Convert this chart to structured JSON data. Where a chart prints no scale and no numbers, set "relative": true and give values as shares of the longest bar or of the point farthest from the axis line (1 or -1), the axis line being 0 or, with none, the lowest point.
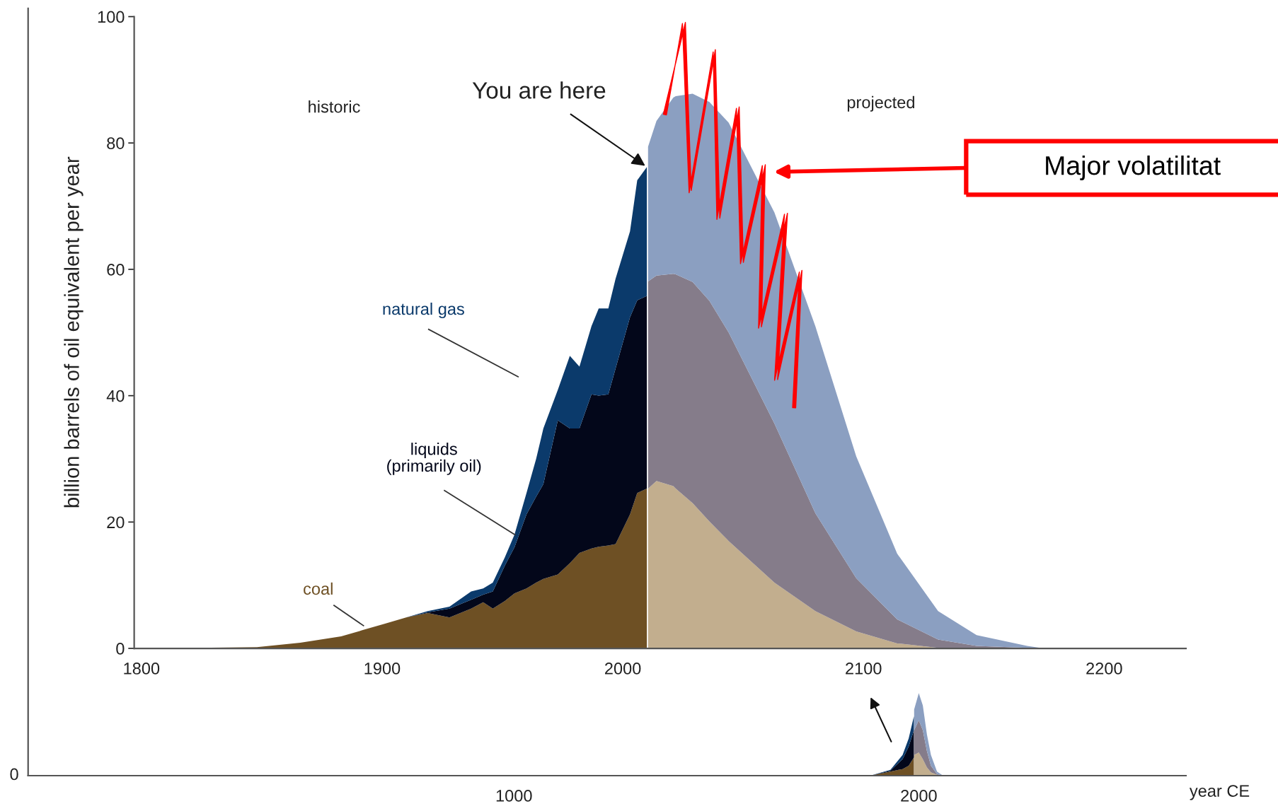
{
  "chart_data": [
    {
      "type": "area",
      "ylabel": "billion barrels of oil equivalent per year",
      "stacked": true,
      "xlim": [
        1797,
        2234
      ],
      "xticks": [
        1800,
        1900,
        2000,
        2100,
        2200
      ],
      "ylim": [
        0,
        100
      ],
      "yticks": [
        0,
        20,
        40,
        60,
        80,
        100
      ],
      "x": [
        1800,
        1848,
        1866,
        1883,
        1892,
        1901,
        1910,
        1919,
        1928,
        1937,
        1942,
        1946,
        1951,
        1955,
        1960,
        1964,
        1967,
        1973,
        1978,
        1982,
        1987,
        1990,
        1994,
        1997,
        2003,
        2006,
        2010,
        2010.5,
        2014,
        2021,
        2022,
        2029,
        2036,
        2044,
        2063,
        2080,
        2097,
        2114,
        2131,
        2147,
        2168,
        2175
      ],
      "series": [
        {
          "name": "coal",
          "color": "#6e5024",
          "values": [
            0,
            0.2,
            0.9,
            1.9,
            2.9,
            3.9,
            4.9,
            5.6,
            4.9,
            6.3,
            7.3,
            6.3,
            7.5,
            8.7,
            9.5,
            10.4,
            11,
            11.7,
            13.5,
            15.1,
            15.8,
            16.1,
            16.3,
            16.5,
            21.2,
            24.6,
            25.3,
            null,
            null,
            null,
            null,
            null,
            null,
            null,
            null,
            null,
            null,
            null,
            null,
            null,
            null,
            null
          ]
        },
        {
          "color": "#c2ae8e",
          "values": [
            null,
            null,
            null,
            null,
            null,
            null,
            null,
            null,
            null,
            null,
            null,
            null,
            null,
            null,
            null,
            null,
            null,
            null,
            null,
            null,
            null,
            null,
            null,
            null,
            null,
            null,
            null,
            25.3,
            26.5,
            25.7,
            25.3,
            23,
            20.1,
            17.0,
            10.4,
            5.9,
            2.7,
            0.8,
            0.1,
            0,
            0,
            0
          ]
        },
        {
          "name": "liquids\n(primarily oil)",
          "color": "#03071a",
          "values": [
            0,
            0,
            0,
            0,
            0,
            0,
            0,
            0.1,
            1.4,
            1.4,
            1.2,
            2.7,
            5.6,
            7.3,
            11.7,
            13.6,
            15,
            24.4,
            21.3,
            19.7,
            24.4,
            23.9,
            23.9,
            27.8,
            31.2,
            30.5,
            30.5,
            null,
            null,
            null,
            null,
            null,
            null,
            null,
            null,
            null,
            null,
            null,
            null,
            null,
            null,
            null
          ]
        },
        {
          "color": "#857c8a",
          "values": [
            null,
            null,
            null,
            null,
            null,
            null,
            null,
            null,
            null,
            null,
            null,
            null,
            null,
            null,
            null,
            null,
            null,
            null,
            null,
            null,
            null,
            null,
            null,
            null,
            null,
            null,
            null,
            32.8,
            32.5,
            33.6,
            33.9,
            35,
            34.9,
            33.0,
            25.2,
            15.5,
            8.4,
            3.8,
            1.3,
            0.4,
            0.1,
            0
          ]
        },
        {
          "name": "natural gas",
          "color": "#0b3a6b",
          "values": [
            0,
            0,
            0,
            0,
            0,
            0,
            0,
            0.2,
            0.3,
            1.3,
            1.0,
            1.4,
            1.3,
            2,
            3.4,
            6,
            8.8,
            4.8,
            11.5,
            9.8,
            10.8,
            13.8,
            13.6,
            14.2,
            13.6,
            19,
            20.4,
            null,
            null,
            null,
            null,
            null,
            null,
            null,
            null,
            null,
            null,
            null,
            null,
            null,
            null,
            null
          ]
        },
        {
          "color": "#8b9fc1",
          "values": [
            null,
            null,
            null,
            null,
            null,
            null,
            null,
            null,
            null,
            null,
            null,
            null,
            null,
            null,
            null,
            null,
            null,
            null,
            null,
            null,
            null,
            null,
            null,
            null,
            null,
            null,
            null,
            21.3,
            24.5,
            27.9,
            28.2,
            29.8,
            31.5,
            33.2,
            33.4,
            29.6,
            19.3,
            10.4,
            4.5,
            1.7,
            0.3,
            0
          ]
        }
      ],
      "annotations": [
        "historic",
        "projected",
        {
          "text": "You are here",
          "x": 2010,
          "y": 76.2
        },
        "Major volatilitat"
      ]
    },
    {
      "type": "area",
      "xlabel": "year CE",
      "stacked": true,
      "relative": true,
      "xlim": [
        -200,
        2660
      ],
      "xticks": [
        1000,
        2000
      ],
      "x": [
        1880,
        1930,
        1960,
        1975,
        1988,
        1988.5,
        2000,
        2010,
        2020,
        2030,
        2045,
        2060
      ],
      "series": [
        {
          "color": "#6e5024",
          "values": [
            0,
            0.05,
            0.08,
            0.12,
            0.22,
            null,
            null,
            null,
            null,
            null,
            null,
            null
          ]
        },
        {
          "color": "#c2ae8e",
          "values": [
            null,
            null,
            null,
            null,
            null,
            0.25,
            0.28,
            0.2,
            0.1,
            0.04,
            0.01,
            0
          ]
        },
        {
          "color": "#03071a",
          "values": [
            0,
            0.01,
            0.12,
            0.23,
            0.33,
            null,
            null,
            null,
            null,
            null,
            null,
            null
          ]
        },
        {
          "color": "#857c8a",
          "values": [
            null,
            null,
            null,
            null,
            null,
            0.3,
            0.39,
            0.35,
            0.2,
            0.08,
            0.01,
            0
          ]
        },
        {
          "color": "#0b3a6b",
          "values": [
            0,
            0.01,
            0.05,
            0.1,
            0.17,
            null,
            null,
            null,
            null,
            null,
            null,
            null
          ]
        },
        {
          "color": "#8b9fc1",
          "values": [
            null,
            null,
            null,
            null,
            null,
            0.25,
            0.33,
            0.3,
            0.2,
            0.13,
            0.03,
            0
          ]
        }
      ],
      "annotations": [
        "0"
      ]
    }
  ]
}
